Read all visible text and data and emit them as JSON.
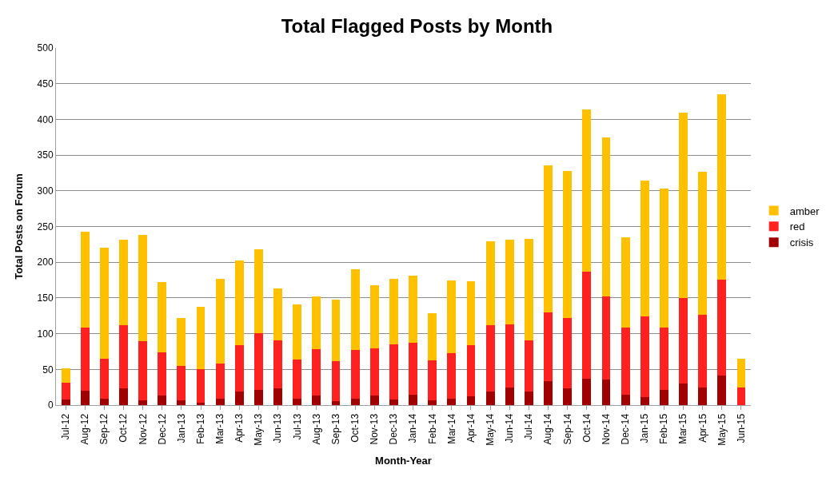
{
  "chart_data": {
    "type": "bar",
    "stacked": true,
    "title": "Total Flagged Posts by Month",
    "xlabel": "Month-Year",
    "ylabel": "Total Posts on Forum",
    "categories": [
      "Jul-12",
      "Aug-12",
      "Sep-12",
      "Oct-12",
      "Nov-12",
      "Dec-12",
      "Jan-13",
      "Feb-13",
      "Mar-13",
      "Apr-13",
      "May-13",
      "Jun-13",
      "Jul-13",
      "Aug-13",
      "Sep-13",
      "Oct-13",
      "Nov-13",
      "Dec-13",
      "Jan-14",
      "Feb-14",
      "Mar-14",
      "Apr-14",
      "May-14",
      "Jun-14",
      "Jul-14",
      "Aug-14",
      "Sep-14",
      "Oct-14",
      "Nov-14",
      "Dec-14",
      "Jan-15",
      "Feb-15",
      "Mar-15",
      "Apr-15",
      "May-15",
      "Jun-15"
    ],
    "series": [
      {
        "name": "crisis",
        "color": "#a00000",
        "values": [
          8,
          20,
          9,
          24,
          7,
          13,
          7,
          3,
          9,
          19,
          21,
          24,
          9,
          13,
          6,
          9,
          13,
          8,
          15,
          7,
          9,
          12,
          19,
          25,
          19,
          34,
          24,
          37,
          36,
          14,
          11,
          21,
          30,
          25,
          41,
          0
        ]
      },
      {
        "name": "red",
        "color": "#ff2020",
        "values": [
          23,
          88,
          56,
          88,
          82,
          61,
          48,
          47,
          49,
          65,
          80,
          67,
          55,
          65,
          56,
          68,
          66,
          77,
          72,
          56,
          64,
          72,
          93,
          88,
          72,
          96,
          98,
          150,
          116,
          95,
          113,
          88,
          120,
          101,
          135,
          25
        ]
      },
      {
        "name": "amber",
        "color": "#ffc000",
        "values": [
          21,
          135,
          155,
          120,
          149,
          98,
          67,
          88,
          119,
          119,
          117,
          72,
          77,
          74,
          86,
          113,
          89,
          92,
          94,
          66,
          102,
          89,
          117,
          118,
          142,
          206,
          206,
          227,
          223,
          126,
          190,
          194,
          259,
          201,
          259,
          40
        ]
      }
    ],
    "ylim": [
      0,
      500
    ],
    "yticks": [
      0,
      50,
      100,
      150,
      200,
      250,
      300,
      350,
      400,
      450,
      500
    ],
    "grid": "y",
    "legend": "right"
  }
}
